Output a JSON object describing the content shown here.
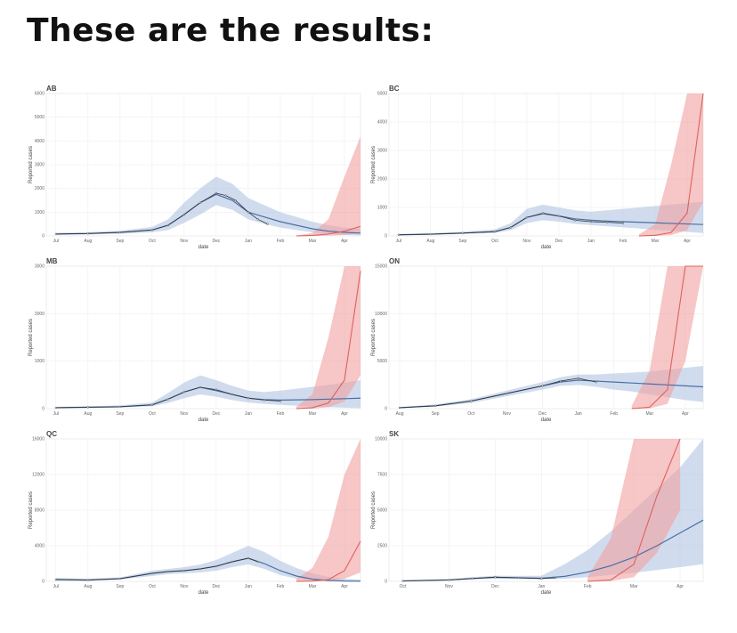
{
  "page": {
    "heading": "These are the results:"
  },
  "colors": {
    "observed": "#333333",
    "blue_line": "#4a6fa5",
    "blue_band": "#a9c0e0",
    "red_line": "#e06060",
    "red_band": "#f2a0a0",
    "grid": "#eeeeee",
    "panel_border": "#dddddd"
  },
  "chart_data": [
    {
      "type": "line",
      "title": "AB",
      "xlabel": "date",
      "ylabel": "Reported cases",
      "x_ticks": [
        "Jul",
        "Aug",
        "Sep",
        "Oct",
        "Nov",
        "Dec",
        "Jan",
        "Feb",
        "Mar",
        "Apr"
      ],
      "y_ticks": [
        0,
        1000,
        2000,
        3000,
        4000,
        5000,
        6000
      ],
      "ylim": [
        0,
        6000
      ],
      "observed": {
        "x": [
          0,
          1,
          2,
          3,
          3.5,
          4,
          4.5,
          5,
          5.3,
          5.6,
          6,
          6.3,
          6.6
        ],
        "y": [
          80,
          100,
          150,
          250,
          450,
          900,
          1400,
          1800,
          1700,
          1500,
          1000,
          700,
          500
        ]
      },
      "blue": {
        "x": [
          0,
          1,
          2,
          3,
          3.5,
          4,
          4.5,
          5,
          5.5,
          6,
          6.5,
          7,
          7.5,
          8,
          8.5,
          9,
          9.5
        ],
        "y": [
          80,
          100,
          150,
          250,
          450,
          900,
          1400,
          1750,
          1500,
          1000,
          800,
          600,
          450,
          300,
          200,
          150,
          120
        ]
      },
      "blue_band": {
        "lo": [
          40,
          60,
          90,
          150,
          250,
          550,
          900,
          1300,
          1100,
          700,
          500,
          350,
          250,
          150,
          80,
          40,
          20
        ],
        "hi": [
          130,
          160,
          220,
          380,
          700,
          1400,
          2000,
          2500,
          2200,
          1600,
          1300,
          1000,
          800,
          600,
          450,
          350,
          300
        ]
      },
      "red": {
        "x": [
          7.5,
          8,
          8.5,
          9,
          9.5
        ],
        "y": [
          0,
          20,
          80,
          200,
          400
        ]
      },
      "red_band": {
        "lo": [
          0,
          0,
          10,
          40,
          100
        ],
        "hi": [
          20,
          120,
          700,
          2500,
          4200
        ]
      }
    },
    {
      "type": "line",
      "title": "BC",
      "xlabel": "date",
      "ylabel": "Reported cases",
      "x_ticks": [
        "Jul",
        "Aug",
        "Sep",
        "Oct",
        "Nov",
        "Dec",
        "Jan",
        "Feb",
        "Mar",
        "Apr"
      ],
      "y_ticks": [
        0,
        1000,
        2000,
        3000,
        4000,
        5000
      ],
      "ylim": [
        0,
        5000
      ],
      "observed": {
        "x": [
          0,
          1,
          2,
          3,
          3.5,
          4,
          4.5,
          5,
          5.5,
          6,
          6.5,
          7
        ],
        "y": [
          40,
          60,
          100,
          150,
          300,
          650,
          800,
          700,
          550,
          500,
          480,
          450
        ]
      },
      "blue": {
        "x": [
          0,
          1,
          2,
          3,
          3.5,
          4,
          4.5,
          5,
          5.5,
          6,
          6.5,
          7,
          7.5,
          8,
          8.5,
          9,
          9.5
        ],
        "y": [
          40,
          60,
          100,
          150,
          300,
          650,
          780,
          700,
          600,
          550,
          520,
          500,
          480,
          460,
          440,
          420,
          400
        ]
      },
      "blue_band": {
        "lo": [
          20,
          40,
          70,
          100,
          200,
          450,
          550,
          500,
          420,
          380,
          340,
          300,
          260,
          220,
          180,
          140,
          100
        ],
        "hi": [
          70,
          100,
          150,
          230,
          450,
          950,
          1100,
          1000,
          900,
          850,
          900,
          950,
          1000,
          1050,
          1100,
          1150,
          1200
        ]
      },
      "red": {
        "x": [
          7.5,
          8,
          8.5,
          9,
          9.5
        ],
        "y": [
          0,
          20,
          120,
          800,
          5000
        ]
      },
      "red_band": {
        "lo": [
          0,
          0,
          30,
          200,
          1200
        ],
        "hi": [
          60,
          400,
          2500,
          5000,
          5000
        ]
      }
    },
    {
      "type": "line",
      "title": "MB",
      "xlabel": "date",
      "ylabel": "Reported cases",
      "x_ticks": [
        "Jul",
        "Aug",
        "Sep",
        "Oct",
        "Nov",
        "Dec",
        "Jan",
        "Feb",
        "Mar",
        "Apr"
      ],
      "y_ticks": [
        0,
        1000,
        2000,
        3000
      ],
      "ylim": [
        0,
        3000
      ],
      "observed": {
        "x": [
          0,
          1,
          2,
          3,
          3.5,
          4,
          4.5,
          5,
          5.5,
          6,
          6.5,
          7
        ],
        "y": [
          20,
          30,
          40,
          80,
          200,
          350,
          450,
          400,
          300,
          220,
          180,
          160
        ]
      },
      "blue": {
        "x": [
          0,
          1,
          2,
          3,
          3.5,
          4,
          4.5,
          5,
          5.5,
          6,
          6.5,
          7,
          7.5,
          8,
          8.5,
          9,
          9.5
        ],
        "y": [
          20,
          30,
          40,
          80,
          200,
          350,
          450,
          380,
          300,
          220,
          190,
          180,
          185,
          190,
          200,
          210,
          220
        ]
      },
      "blue_band": {
        "lo": [
          10,
          15,
          25,
          50,
          120,
          220,
          300,
          250,
          180,
          130,
          100,
          80,
          60,
          40,
          30,
          20,
          10
        ],
        "hi": [
          40,
          50,
          70,
          130,
          330,
          550,
          700,
          600,
          480,
          380,
          350,
          380,
          420,
          460,
          500,
          550,
          600
        ]
      },
      "red": {
        "x": [
          7.5,
          8,
          8.5,
          9,
          9.5
        ],
        "y": [
          0,
          20,
          120,
          600,
          2900
        ]
      },
      "red_band": {
        "lo": [
          0,
          0,
          30,
          150,
          700
        ],
        "hi": [
          40,
          300,
          1500,
          3000,
          3000
        ]
      }
    },
    {
      "type": "line",
      "title": "ON",
      "xlabel": "date",
      "ylabel": "Reported cases",
      "x_ticks": [
        "Aug",
        "Sep",
        "Oct",
        "Nov",
        "Dec",
        "Jan",
        "Feb",
        "Mar",
        "Apr"
      ],
      "y_ticks": [
        0,
        5000,
        10000,
        15000
      ],
      "ylim": [
        0,
        15000
      ],
      "observed": {
        "x": [
          0,
          1,
          2,
          3,
          4,
          4.5,
          5,
          5.5
        ],
        "y": [
          100,
          300,
          800,
          1600,
          2400,
          2900,
          3200,
          2800
        ]
      },
      "blue": {
        "x": [
          0,
          1,
          2,
          3,
          4,
          4.5,
          5,
          5.5,
          6,
          6.5,
          7,
          7.5,
          8,
          8.5
        ],
        "y": [
          100,
          300,
          800,
          1600,
          2400,
          2800,
          3000,
          2900,
          2800,
          2700,
          2600,
          2500,
          2400,
          2300
        ]
      },
      "blue_band": {
        "lo": [
          50,
          200,
          600,
          1300,
          2000,
          2400,
          2500,
          2300,
          2000,
          1800,
          1500,
          1200,
          900,
          700
        ],
        "hi": [
          180,
          450,
          1000,
          1900,
          2800,
          3300,
          3600,
          3600,
          3700,
          3800,
          3900,
          4100,
          4300,
          4500
        ]
      },
      "red": {
        "x": [
          6.5,
          7,
          7.5,
          8,
          8.5
        ],
        "y": [
          0,
          150,
          2000,
          15000,
          15000
        ]
      },
      "red_band": {
        "lo": [
          0,
          20,
          500,
          5000,
          15000
        ],
        "hi": [
          300,
          4000,
          15000,
          15000,
          15000
        ]
      }
    },
    {
      "type": "line",
      "title": "QC",
      "xlabel": "date",
      "ylabel": "Reported cases",
      "x_ticks": [
        "Jul",
        "Aug",
        "Sep",
        "Oct",
        "Nov",
        "Dec",
        "Jan",
        "Feb",
        "Mar",
        "Apr"
      ],
      "y_ticks": [
        0,
        4000,
        8000,
        12000,
        16000
      ],
      "ylim": [
        0,
        16000
      ],
      "observed": {
        "x": [
          0,
          1,
          2,
          3,
          3.5,
          4,
          4.5,
          5,
          5.5,
          6,
          6.3
        ],
        "y": [
          200,
          150,
          300,
          900,
          1100,
          1200,
          1400,
          1700,
          2200,
          2600,
          2200
        ]
      },
      "blue": {
        "x": [
          0,
          1,
          2,
          3,
          3.5,
          4,
          4.5,
          5,
          5.5,
          6,
          6.5,
          7,
          7.5,
          8,
          8.5,
          9,
          9.5
        ],
        "y": [
          200,
          150,
          300,
          900,
          1100,
          1200,
          1400,
          1700,
          2200,
          2600,
          2000,
          1200,
          600,
          250,
          100,
          40,
          20
        ]
      },
      "blue_band": {
        "lo": [
          80,
          80,
          200,
          600,
          800,
          900,
          1000,
          1200,
          1600,
          1900,
          1400,
          700,
          300,
          100,
          30,
          10,
          0
        ],
        "hi": [
          400,
          300,
          450,
          1200,
          1400,
          1600,
          1900,
          2400,
          3200,
          4000,
          3300,
          2300,
          1500,
          900,
          500,
          300,
          200
        ]
      },
      "red": {
        "x": [
          7.5,
          8,
          8.5,
          9,
          9.5
        ],
        "y": [
          0,
          30,
          200,
          1200,
          4500
        ]
      },
      "red_band": {
        "lo": [
          0,
          0,
          50,
          300,
          1000
        ],
        "hi": [
          300,
          1500,
          5000,
          12000,
          16000
        ]
      }
    },
    {
      "type": "line",
      "title": "SK",
      "xlabel": "date",
      "ylabel": "Reported cases",
      "x_ticks": [
        "Oct",
        "Nov",
        "Dec",
        "Jan",
        "Feb",
        "Mar",
        "Apr"
      ],
      "y_ticks": [
        0,
        2500,
        5000,
        7500,
        10000
      ],
      "ylim": [
        0,
        10000
      ],
      "observed": {
        "x": [
          0,
          1,
          1.5,
          2,
          2.5,
          3,
          3.3
        ],
        "y": [
          30,
          100,
          200,
          300,
          250,
          200,
          250
        ]
      },
      "blue": {
        "x": [
          0,
          1,
          1.5,
          2,
          2.5,
          3,
          3.5,
          4,
          4.5,
          5,
          5.5,
          6,
          6.5
        ],
        "y": [
          30,
          100,
          200,
          280,
          250,
          220,
          350,
          650,
          1100,
          1700,
          2500,
          3400,
          4300
        ]
      },
      "blue_band": {
        "lo": [
          10,
          60,
          130,
          200,
          170,
          140,
          180,
          300,
          450,
          600,
          800,
          1000,
          1200
        ],
        "hi": [
          60,
          160,
          300,
          400,
          380,
          400,
          1200,
          2200,
          3500,
          5000,
          6500,
          8000,
          10000
        ]
      },
      "red": {
        "x": [
          4,
          4.5,
          5,
          5.5,
          6
        ],
        "y": [
          0,
          100,
          1200,
          6000,
          10000
        ]
      },
      "red_band": {
        "lo": [
          0,
          20,
          300,
          2000,
          5000
        ],
        "hi": [
          300,
          3000,
          10000,
          10000,
          10000
        ]
      }
    }
  ]
}
